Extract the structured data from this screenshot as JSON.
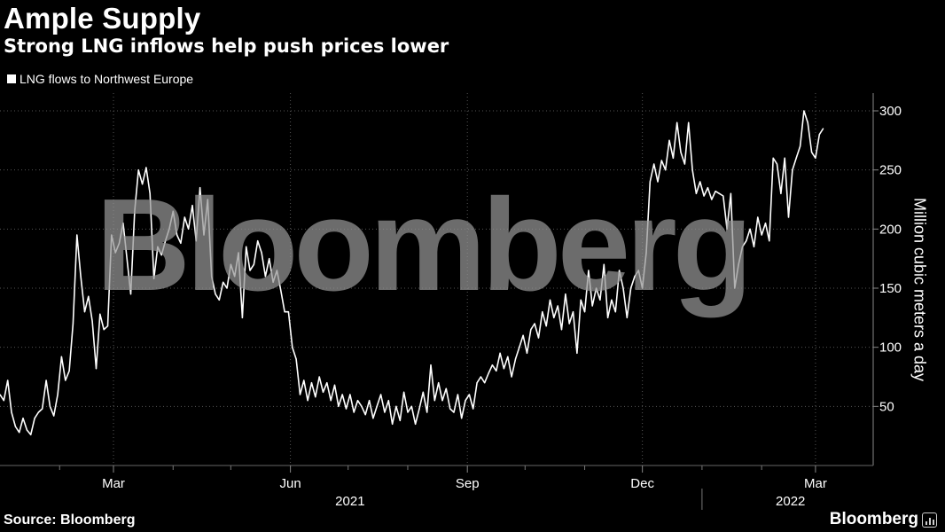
{
  "header": {
    "title": "Ample Supply",
    "subtitle": "Strong LNG inflows help push prices lower"
  },
  "footer": {
    "source": "Source: Bloomberg",
    "brand": "Bloomberg"
  },
  "watermark": "Bloomberg",
  "colors": {
    "background": "#000000",
    "line": "#ffffff",
    "grid": "#555555"
  },
  "chart_data": {
    "type": "line",
    "title": "Ample Supply",
    "subtitle": "Strong LNG inflows help push prices lower",
    "ylabel": "Million cubic meters a day",
    "xlabel": "",
    "ylim": [
      0,
      315
    ],
    "yticks": [
      50,
      100,
      150,
      200,
      250,
      300
    ],
    "y_axis_side": "right",
    "grid": "horizontal dotted",
    "legend_placement": "top-left",
    "xlim": [
      "2021-01-01",
      "2022-03-31"
    ],
    "x_ticks": [
      {
        "date": "2021-03-01",
        "label": "Mar"
      },
      {
        "date": "2021-06-01",
        "label": "Jun"
      },
      {
        "date": "2021-09-01",
        "label": "Sep"
      },
      {
        "date": "2021-12-01",
        "label": "Dec"
      },
      {
        "date": "2022-03-01",
        "label": "Mar"
      }
    ],
    "x_minor_ticks": [
      "2021-02-01",
      "2021-04-01",
      "2021-05-01",
      "2021-07-01",
      "2021-08-01",
      "2021-10-01",
      "2021-11-01",
      "2022-01-01",
      "2022-02-01"
    ],
    "year_labels": [
      {
        "label": "2021",
        "center": "2021-07-02"
      },
      {
        "label": "2022",
        "center": "2022-02-16"
      }
    ],
    "year_divider": "2022-01-01",
    "series": [
      {
        "name": "LNG flows to Northwest Europe",
        "points": [
          [
            "2021-01-01",
            60
          ],
          [
            "2021-01-03",
            55
          ],
          [
            "2021-01-05",
            72
          ],
          [
            "2021-01-07",
            45
          ],
          [
            "2021-01-09",
            33
          ],
          [
            "2021-01-11",
            28
          ],
          [
            "2021-01-13",
            40
          ],
          [
            "2021-01-15",
            30
          ],
          [
            "2021-01-17",
            26
          ],
          [
            "2021-01-19",
            40
          ],
          [
            "2021-01-21",
            45
          ],
          [
            "2021-01-23",
            48
          ],
          [
            "2021-01-25",
            72
          ],
          [
            "2021-01-27",
            50
          ],
          [
            "2021-01-29",
            42
          ],
          [
            "2021-01-31",
            60
          ],
          [
            "2021-02-02",
            92
          ],
          [
            "2021-02-04",
            72
          ],
          [
            "2021-02-06",
            80
          ],
          [
            "2021-02-08",
            120
          ],
          [
            "2021-02-10",
            195
          ],
          [
            "2021-02-12",
            160
          ],
          [
            "2021-02-14",
            130
          ],
          [
            "2021-02-16",
            143
          ],
          [
            "2021-02-18",
            122
          ],
          [
            "2021-02-20",
            82
          ],
          [
            "2021-02-22",
            128
          ],
          [
            "2021-02-24",
            115
          ],
          [
            "2021-02-26",
            118
          ],
          [
            "2021-02-28",
            195
          ],
          [
            "2021-03-02",
            180
          ],
          [
            "2021-03-04",
            188
          ],
          [
            "2021-03-06",
            205
          ],
          [
            "2021-03-08",
            175
          ],
          [
            "2021-03-10",
            145
          ],
          [
            "2021-03-12",
            215
          ],
          [
            "2021-03-14",
            250
          ],
          [
            "2021-03-16",
            238
          ],
          [
            "2021-03-18",
            252
          ],
          [
            "2021-03-20",
            230
          ],
          [
            "2021-03-22",
            158
          ],
          [
            "2021-03-24",
            185
          ],
          [
            "2021-03-26",
            178
          ],
          [
            "2021-03-28",
            190
          ],
          [
            "2021-03-30",
            200
          ],
          [
            "2021-04-01",
            215
          ],
          [
            "2021-04-03",
            195
          ],
          [
            "2021-04-05",
            188
          ],
          [
            "2021-04-07",
            210
          ],
          [
            "2021-04-09",
            200
          ],
          [
            "2021-04-11",
            220
          ],
          [
            "2021-04-13",
            190
          ],
          [
            "2021-04-15",
            235
          ],
          [
            "2021-04-17",
            195
          ],
          [
            "2021-04-19",
            225
          ],
          [
            "2021-04-21",
            160
          ],
          [
            "2021-04-23",
            145
          ],
          [
            "2021-04-25",
            140
          ],
          [
            "2021-04-27",
            155
          ],
          [
            "2021-04-29",
            150
          ],
          [
            "2021-05-01",
            170
          ],
          [
            "2021-05-03",
            160
          ],
          [
            "2021-05-05",
            180
          ],
          [
            "2021-05-07",
            125
          ],
          [
            "2021-05-09",
            185
          ],
          [
            "2021-05-11",
            165
          ],
          [
            "2021-05-13",
            170
          ],
          [
            "2021-05-15",
            190
          ],
          [
            "2021-05-17",
            180
          ],
          [
            "2021-05-19",
            160
          ],
          [
            "2021-05-21",
            175
          ],
          [
            "2021-05-23",
            155
          ],
          [
            "2021-05-25",
            165
          ],
          [
            "2021-05-27",
            148
          ],
          [
            "2021-05-29",
            130
          ],
          [
            "2021-05-31",
            130
          ],
          [
            "2021-06-02",
            100
          ],
          [
            "2021-06-04",
            90
          ],
          [
            "2021-06-06",
            60
          ],
          [
            "2021-06-08",
            72
          ],
          [
            "2021-06-10",
            55
          ],
          [
            "2021-06-12",
            70
          ],
          [
            "2021-06-14",
            58
          ],
          [
            "2021-06-16",
            75
          ],
          [
            "2021-06-18",
            62
          ],
          [
            "2021-06-20",
            70
          ],
          [
            "2021-06-22",
            55
          ],
          [
            "2021-06-24",
            68
          ],
          [
            "2021-06-26",
            50
          ],
          [
            "2021-06-28",
            60
          ],
          [
            "2021-06-30",
            48
          ],
          [
            "2021-07-02",
            60
          ],
          [
            "2021-07-04",
            45
          ],
          [
            "2021-07-06",
            55
          ],
          [
            "2021-07-08",
            50
          ],
          [
            "2021-07-10",
            43
          ],
          [
            "2021-07-12",
            55
          ],
          [
            "2021-07-14",
            40
          ],
          [
            "2021-07-16",
            50
          ],
          [
            "2021-07-18",
            60
          ],
          [
            "2021-07-20",
            45
          ],
          [
            "2021-07-22",
            55
          ],
          [
            "2021-07-24",
            35
          ],
          [
            "2021-07-26",
            50
          ],
          [
            "2021-07-28",
            38
          ],
          [
            "2021-07-30",
            62
          ],
          [
            "2021-08-01",
            45
          ],
          [
            "2021-08-03",
            50
          ],
          [
            "2021-08-05",
            35
          ],
          [
            "2021-08-07",
            48
          ],
          [
            "2021-08-09",
            62
          ],
          [
            "2021-08-11",
            45
          ],
          [
            "2021-08-13",
            85
          ],
          [
            "2021-08-15",
            55
          ],
          [
            "2021-08-17",
            70
          ],
          [
            "2021-08-19",
            55
          ],
          [
            "2021-08-21",
            65
          ],
          [
            "2021-08-23",
            48
          ],
          [
            "2021-08-25",
            45
          ],
          [
            "2021-08-27",
            60
          ],
          [
            "2021-08-29",
            40
          ],
          [
            "2021-08-31",
            55
          ],
          [
            "2021-09-02",
            60
          ],
          [
            "2021-09-04",
            48
          ],
          [
            "2021-09-06",
            70
          ],
          [
            "2021-09-08",
            75
          ],
          [
            "2021-09-10",
            70
          ],
          [
            "2021-09-12",
            78
          ],
          [
            "2021-09-14",
            85
          ],
          [
            "2021-09-16",
            80
          ],
          [
            "2021-09-18",
            95
          ],
          [
            "2021-09-20",
            82
          ],
          [
            "2021-09-22",
            92
          ],
          [
            "2021-09-24",
            75
          ],
          [
            "2021-09-26",
            90
          ],
          [
            "2021-09-28",
            100
          ],
          [
            "2021-09-30",
            110
          ],
          [
            "2021-10-02",
            95
          ],
          [
            "2021-10-04",
            115
          ],
          [
            "2021-10-06",
            120
          ],
          [
            "2021-10-08",
            108
          ],
          [
            "2021-10-10",
            130
          ],
          [
            "2021-10-12",
            118
          ],
          [
            "2021-10-14",
            140
          ],
          [
            "2021-10-16",
            125
          ],
          [
            "2021-10-18",
            135
          ],
          [
            "2021-10-20",
            115
          ],
          [
            "2021-10-22",
            145
          ],
          [
            "2021-10-24",
            120
          ],
          [
            "2021-10-26",
            130
          ],
          [
            "2021-10-28",
            95
          ],
          [
            "2021-10-30",
            140
          ],
          [
            "2021-11-01",
            130
          ],
          [
            "2021-11-03",
            165
          ],
          [
            "2021-11-05",
            135
          ],
          [
            "2021-11-07",
            150
          ],
          [
            "2021-11-09",
            140
          ],
          [
            "2021-11-11",
            170
          ],
          [
            "2021-11-13",
            125
          ],
          [
            "2021-11-15",
            140
          ],
          [
            "2021-11-17",
            130
          ],
          [
            "2021-11-19",
            165
          ],
          [
            "2021-11-21",
            150
          ],
          [
            "2021-11-23",
            125
          ],
          [
            "2021-11-25",
            150
          ],
          [
            "2021-11-27",
            160
          ],
          [
            "2021-11-29",
            165
          ],
          [
            "2021-12-01",
            150
          ],
          [
            "2021-12-03",
            180
          ],
          [
            "2021-12-05",
            240
          ],
          [
            "2021-12-07",
            255
          ],
          [
            "2021-12-09",
            240
          ],
          [
            "2021-12-11",
            258
          ],
          [
            "2021-12-13",
            250
          ],
          [
            "2021-12-15",
            275
          ],
          [
            "2021-12-17",
            260
          ],
          [
            "2021-12-19",
            290
          ],
          [
            "2021-12-21",
            265
          ],
          [
            "2021-12-23",
            255
          ],
          [
            "2021-12-25",
            290
          ],
          [
            "2021-12-27",
            250
          ],
          [
            "2021-12-29",
            230
          ],
          [
            "2021-12-31",
            240
          ],
          [
            "2022-01-02",
            228
          ],
          [
            "2022-01-04",
            235
          ],
          [
            "2022-01-06",
            225
          ],
          [
            "2022-01-08",
            232
          ],
          [
            "2022-01-10",
            230
          ],
          [
            "2022-01-12",
            228
          ],
          [
            "2022-01-14",
            200
          ],
          [
            "2022-01-16",
            230
          ],
          [
            "2022-01-18",
            150
          ],
          [
            "2022-01-20",
            170
          ],
          [
            "2022-01-22",
            185
          ],
          [
            "2022-01-24",
            190
          ],
          [
            "2022-01-26",
            200
          ],
          [
            "2022-01-28",
            185
          ],
          [
            "2022-01-30",
            210
          ],
          [
            "2022-02-01",
            195
          ],
          [
            "2022-02-03",
            205
          ],
          [
            "2022-02-05",
            190
          ],
          [
            "2022-02-07",
            260
          ],
          [
            "2022-02-09",
            255
          ],
          [
            "2022-02-11",
            230
          ],
          [
            "2022-02-13",
            260
          ],
          [
            "2022-02-15",
            210
          ],
          [
            "2022-02-17",
            250
          ],
          [
            "2022-02-19",
            260
          ],
          [
            "2022-02-21",
            270
          ],
          [
            "2022-02-23",
            300
          ],
          [
            "2022-02-25",
            290
          ],
          [
            "2022-02-27",
            265
          ],
          [
            "2022-03-01",
            260
          ],
          [
            "2022-03-03",
            280
          ],
          [
            "2022-03-05",
            285
          ]
        ]
      }
    ]
  }
}
